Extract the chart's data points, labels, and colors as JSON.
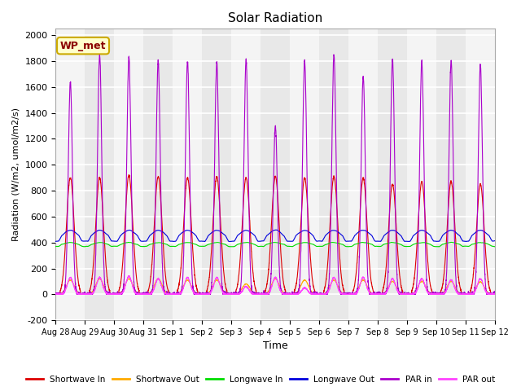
{
  "title": "Solar Radiation",
  "ylabel": "Radiation (W/m2, umol/m2/s)",
  "xlabel": "Time",
  "ylim": [
    -200,
    2050
  ],
  "yticks": [
    -200,
    0,
    200,
    400,
    600,
    800,
    1000,
    1200,
    1400,
    1600,
    1800,
    2000
  ],
  "colors": {
    "shortwave_in": "#dd0000",
    "shortwave_out": "#ffaa00",
    "longwave_in": "#00dd00",
    "longwave_out": "#0000dd",
    "par_in": "#aa00cc",
    "par_out": "#ff44ff"
  },
  "legend_labels": [
    "Shortwave In",
    "Shortwave Out",
    "Longwave In",
    "Longwave Out",
    "PAR in",
    "PAR out"
  ],
  "annotation_text": "WP_met",
  "annotation_bg": "#ffffcc",
  "annotation_border": "#ccaa00",
  "n_days": 15,
  "x_tick_labels": [
    "Aug 28",
    "Aug 29",
    "Aug 30",
    "Aug 31",
    "Sep 1",
    "Sep 2",
    "Sep 3",
    "Sep 4",
    "Sep 5",
    "Sep 6",
    "Sep 7",
    "Sep 8",
    "Sep 9",
    "Sep 10",
    "Sep 11",
    "Sep 12"
  ],
  "shortwave_in_peaks": [
    900,
    900,
    920,
    910,
    900,
    910,
    900,
    910,
    900,
    910,
    900,
    850,
    870,
    870,
    850
  ],
  "shortwave_out_peaks": [
    110,
    120,
    120,
    120,
    110,
    110,
    80,
    120,
    110,
    110,
    110,
    100,
    100,
    100,
    95
  ],
  "par_in_peaks": [
    1640,
    1850,
    1830,
    1800,
    1800,
    1790,
    1810,
    1300,
    1800,
    1850,
    1680,
    1810,
    1800,
    1800,
    1770
  ],
  "par_out_peaks": [
    130,
    130,
    140,
    120,
    130,
    130,
    60,
    130,
    50,
    130,
    130,
    120,
    120,
    110,
    120
  ],
  "longwave_in_base": 370,
  "longwave_out_base": 410,
  "longwave_in_day_amp": 30,
  "longwave_out_day_amp": 85,
  "plot_bg_odd": "#e8e8e8",
  "plot_bg_even": "#f4f4f4"
}
